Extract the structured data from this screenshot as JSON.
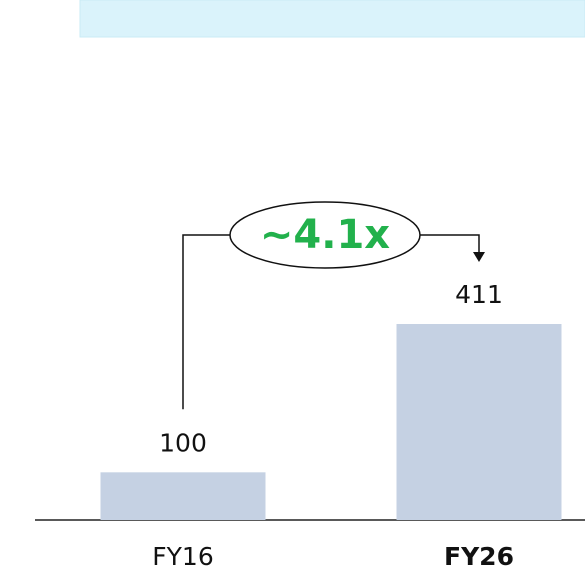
{
  "chart_data": {
    "type": "bar",
    "categories": [
      "FY16",
      "FY26"
    ],
    "values": [
      100,
      411
    ],
    "color": "#c5d1e3",
    "annotation": "~4.1x",
    "annotation_color": "#22b14c"
  }
}
